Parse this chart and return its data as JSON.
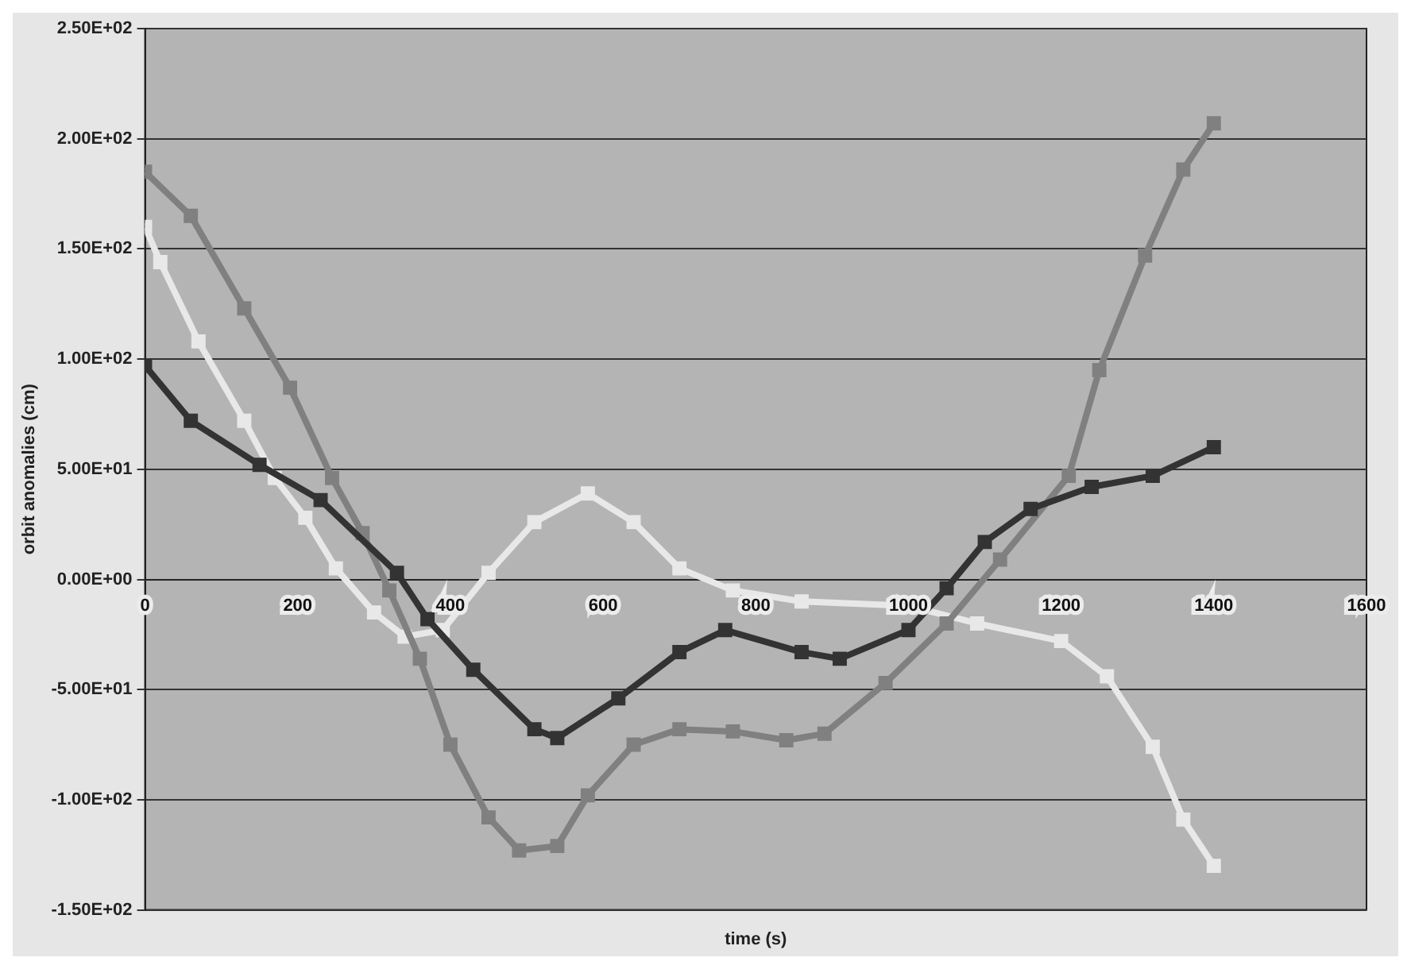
{
  "chart_data": {
    "type": "line",
    "xlabel": "time (s)",
    "ylabel": "orbit anomalies (cm)",
    "xlim": [
      0,
      1600
    ],
    "xticks": [
      0,
      200,
      400,
      600,
      800,
      1000,
      1200,
      1400,
      1600
    ],
    "ylim": [
      -150,
      250
    ],
    "yticks": [
      {
        "value": -150,
        "label": "-1.50E+02"
      },
      {
        "value": -100,
        "label": "-1.00E+02"
      },
      {
        "value": -50,
        "label": "-5.00E+01"
      },
      {
        "value": 0,
        "label": "0.00E+00"
      },
      {
        "value": 50,
        "label": "5.00E+01"
      },
      {
        "value": 100,
        "label": "1.00E+02"
      },
      {
        "value": 150,
        "label": "1.50E+02"
      },
      {
        "value": 200,
        "label": "2.00E+02"
      },
      {
        "value": 250,
        "label": "2.50E+02"
      }
    ],
    "grid": "y",
    "legend": false,
    "marker": "square",
    "line_style": "solid",
    "series": [
      {
        "color": "#333333",
        "x": [
          0,
          60,
          150,
          230,
          330,
          370,
          430,
          510,
          540,
          620,
          700,
          760,
          860,
          910,
          1000,
          1050,
          1100,
          1160,
          1240,
          1320,
          1400
        ],
        "values": [
          97,
          72,
          52,
          36,
          3,
          -18,
          -41,
          -68,
          -72,
          -54,
          -33,
          -23,
          -33,
          -36,
          -23,
          -4,
          17,
          32,
          42,
          47,
          60
        ]
      },
      {
        "color": "#808080",
        "x": [
          0,
          60,
          130,
          190,
          245,
          285,
          320,
          360,
          400,
          450,
          490,
          540,
          580,
          640,
          700,
          770,
          840,
          890,
          970,
          1050,
          1120,
          1210,
          1250,
          1310,
          1360,
          1400
        ],
        "values": [
          185,
          165,
          123,
          87,
          46,
          21,
          -5,
          -36,
          -75,
          -108,
          -123,
          -121,
          -98,
          -75,
          -68,
          -69,
          -73,
          -70,
          -47,
          -20,
          9,
          47,
          95,
          147,
          186,
          207
        ]
      },
      {
        "color": "#e8e8e8",
        "x": [
          0,
          20,
          70,
          130,
          170,
          210,
          250,
          300,
          340,
          390,
          450,
          510,
          580,
          640,
          700,
          770,
          860,
          1000,
          1090,
          1200,
          1260,
          1320,
          1360,
          1400
        ],
        "values": [
          160,
          144,
          108,
          72,
          46,
          28,
          5,
          -15,
          -26,
          -23,
          3,
          26,
          39,
          26,
          5,
          -5,
          -10,
          -12,
          -20,
          -28,
          -44,
          -76,
          -109,
          -130
        ]
      }
    ]
  }
}
